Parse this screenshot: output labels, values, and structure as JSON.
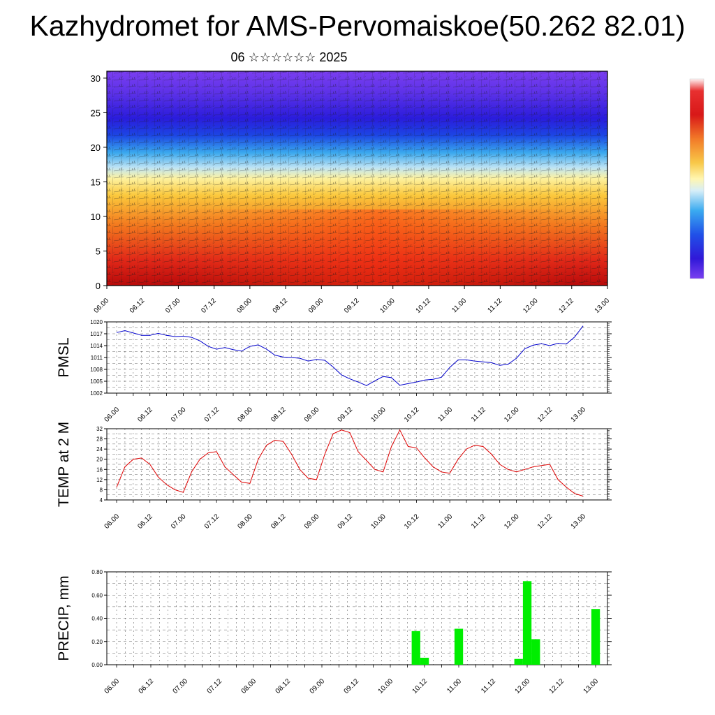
{
  "title": "Kazhydromet for AMS-Pervomaiskoe(50.262 82.01)",
  "subtitle": "06 ☆☆☆☆☆☆ 2025",
  "x_ticks": [
    "06.00",
    "06.12",
    "07.00",
    "07.12",
    "08.00",
    "08.12",
    "09.00",
    "09.12",
    "10.00",
    "10.12",
    "11.00",
    "11.12",
    "12.00",
    "12.12",
    "13.00"
  ],
  "colors": {
    "pmsl_line": "#0000cc",
    "temp_line": "#dd0000",
    "precip_bar": "#00ee00"
  },
  "chart_data": [
    {
      "type": "heatmap",
      "panel": "cross-section",
      "title": "",
      "xlabel": "",
      "ylabel": "",
      "x_categories": [
        "06.00",
        "06.12",
        "07.00",
        "07.12",
        "08.00",
        "08.12",
        "09.00",
        "09.12",
        "10.00",
        "10.12",
        "11.00",
        "11.12",
        "12.00",
        "12.12",
        "13.00"
      ],
      "ylim": [
        0,
        31
      ],
      "y_ticks": [
        0,
        5,
        10,
        15,
        20,
        25,
        30
      ],
      "colormap": "blue-purple aloft, yellow ~15, red near surface",
      "overlay": "wind barbs"
    },
    {
      "type": "line",
      "panel": "pmsl",
      "ylabel": "PMSL",
      "ylim": [
        1002,
        1020
      ],
      "y_ticks": [
        1002,
        1005,
        1008,
        1011,
        1014,
        1017,
        1020
      ],
      "x_ticks": [
        "06.00",
        "06.12",
        "07.00",
        "07.12",
        "08.00",
        "08.12",
        "09.00",
        "09.12",
        "10.00",
        "10.12",
        "11.00",
        "11.12",
        "12.00",
        "12.12",
        "13.00"
      ],
      "series": [
        {
          "values": [
            1017.3,
            1017.8,
            1017.2,
            1016.6,
            1016.6,
            1017.1,
            1016.6,
            1016.3,
            1016.4,
            1016.1,
            1015.2,
            1013.8,
            1013.1,
            1013.5,
            1013.0,
            1012.6,
            1013.8,
            1014.2,
            1013.1,
            1011.6,
            1011.1,
            1011.0,
            1010.8,
            1010.1,
            1010.5,
            1010.3,
            1008.6,
            1006.6,
            1005.6,
            1004.8,
            1003.9,
            1005.1,
            1006.2,
            1005.9,
            1004.0,
            1004.4,
            1004.8,
            1005.3,
            1005.5,
            1006.0,
            1008.5,
            1010.4,
            1010.4,
            1010.1,
            1009.9,
            1009.7,
            1009.0,
            1009.3,
            1010.8,
            1013.2,
            1014.1,
            1014.5,
            1014.0,
            1014.6,
            1014.4,
            1016.2,
            1019.0
          ]
        }
      ]
    },
    {
      "type": "line",
      "panel": "temp",
      "ylabel": "TEMP at 2 M",
      "ylim": [
        4,
        32
      ],
      "y_ticks": [
        4,
        8,
        12,
        16,
        20,
        24,
        28,
        32
      ],
      "x_ticks": [
        "06.00",
        "06.12",
        "07.00",
        "07.12",
        "08.00",
        "08.12",
        "09.00",
        "09.12",
        "10.00",
        "10.12",
        "11.00",
        "11.12",
        "12.00",
        "12.12",
        "13.00"
      ],
      "series": [
        {
          "values": [
            9,
            17,
            20,
            20.5,
            18,
            13,
            10,
            8,
            7,
            15,
            20,
            22.5,
            23,
            17,
            14,
            11,
            10.5,
            20,
            25.5,
            27.5,
            27,
            22,
            16,
            12.5,
            12,
            22,
            30,
            31.5,
            30.5,
            23,
            19.5,
            16,
            15,
            25,
            31.5,
            25,
            24.5,
            20.5,
            17,
            15,
            14.5,
            20,
            24,
            25.5,
            25,
            22,
            18,
            16,
            15,
            16,
            17,
            17.5,
            18,
            12,
            9,
            6.5,
            5.5
          ]
        }
      ]
    },
    {
      "type": "bar",
      "panel": "precip",
      "ylabel": "PRECIP, mm",
      "ylim": [
        0,
        0.8
      ],
      "y_ticks": [
        "0.00",
        "0.20",
        "0.40",
        "0.60",
        "0.80"
      ],
      "x_ticks": [
        "06.00",
        "06.12",
        "07.00",
        "07.12",
        "08.00",
        "08.12",
        "09.00",
        "09.12",
        "10.00",
        "10.12",
        "11.00",
        "11.12",
        "12.00",
        "12.12",
        "13.00"
      ],
      "bars": [
        {
          "t": 10.375,
          "value": 0.29
        },
        {
          "t": 10.5,
          "value": 0.06
        },
        {
          "t": 11.0,
          "value": 0.31
        },
        {
          "t": 11.875,
          "value": 0.05
        },
        {
          "t": 12.0,
          "value": 0.72
        },
        {
          "t": 12.125,
          "value": 0.22
        },
        {
          "t": 13.0,
          "value": 0.48
        }
      ]
    }
  ]
}
